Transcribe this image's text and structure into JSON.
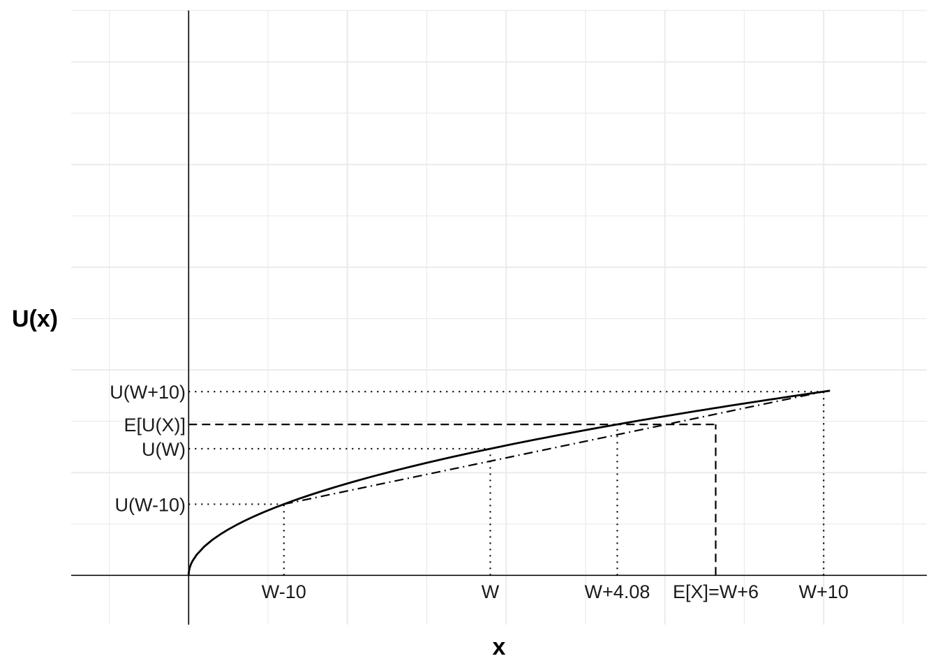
{
  "chart_data": {
    "type": "line",
    "title": "",
    "xlabel": "x",
    "ylabel": "U(x)",
    "grid": true,
    "legend": "none",
    "curve": {
      "function": "sqrt",
      "x": [
        0.5,
        1,
        2,
        3,
        4,
        5,
        6,
        7,
        8,
        9,
        10,
        11,
        12,
        13,
        14,
        15,
        16,
        17,
        18,
        19,
        20,
        21,
        22,
        23,
        24,
        25,
        26,
        27,
        28,
        29,
        30,
        31,
        32,
        33,
        34,
        35,
        36,
        37,
        38,
        39,
        40,
        41,
        42,
        43,
        44,
        45,
        46,
        47,
        48,
        49,
        50,
        51,
        52,
        53,
        54,
        55,
        56,
        57,
        58,
        59,
        60,
        61,
        62,
        63,
        64,
        65,
        66,
        67,
        68,
        69,
        70,
        71,
        72,
        73,
        74,
        75,
        76,
        77,
        78,
        79,
        80,
        80.8
      ],
      "y": [
        0.707,
        1.0,
        1.414,
        1.732,
        2.0,
        2.236,
        2.449,
        2.646,
        2.828,
        3.0,
        3.162,
        3.317,
        3.464,
        3.606,
        3.742,
        3.873,
        4.0,
        4.123,
        4.243,
        4.359,
        4.472,
        4.583,
        4.69,
        4.796,
        4.899,
        5.0,
        5.099,
        5.196,
        5.292,
        5.385,
        5.477,
        5.568,
        5.657,
        5.745,
        5.831,
        5.916,
        6.0,
        6.083,
        6.164,
        6.245,
        6.325,
        6.403,
        6.481,
        6.557,
        6.633,
        6.708,
        6.782,
        6.856,
        6.928,
        7.0,
        7.071,
        7.141,
        7.211,
        7.28,
        7.348,
        7.416,
        7.483,
        7.55,
        7.616,
        7.681,
        7.746,
        7.81,
        7.874,
        7.937,
        8.0,
        8.062,
        8.124,
        8.185,
        8.246,
        8.307,
        8.367,
        8.426,
        8.485,
        8.544,
        8.602,
        8.66,
        8.718,
        8.775,
        8.832,
        8.888,
        8.944,
        8.989
      ]
    },
    "chord": {
      "x": [
        12,
        80
      ],
      "y": [
        3.464,
        8.944
      ]
    },
    "reference_points": {
      "W_minus_10": {
        "x": 12,
        "y": 3.464
      },
      "W": {
        "x": 38,
        "y": 6.164
      },
      "certainty_equivalent": {
        "x": 54,
        "y": 7.347
      },
      "expected_value": {
        "x": 66.4,
        "y": 7.347
      },
      "W_plus_10": {
        "x": 80,
        "y": 8.944
      }
    },
    "x_ticks": [
      {
        "value": 12,
        "label": "W-10"
      },
      {
        "value": 38,
        "label": "W"
      },
      {
        "value": 54,
        "label": "W+4.08"
      },
      {
        "value": 66.4,
        "label": "E[X]=W+6"
      },
      {
        "value": 80,
        "label": "W+10"
      }
    ],
    "y_ticks": [
      {
        "value": 8.944,
        "label": "U(W+10)"
      },
      {
        "value": 7.347,
        "label": "E[U(X)]"
      },
      {
        "value": 6.164,
        "label": "U(W)"
      },
      {
        "value": 3.464,
        "label": "U(W-10)"
      }
    ],
    "xlim": [
      -14.8,
      93
    ],
    "ylim": [
      -2.4,
      27.5
    ]
  }
}
